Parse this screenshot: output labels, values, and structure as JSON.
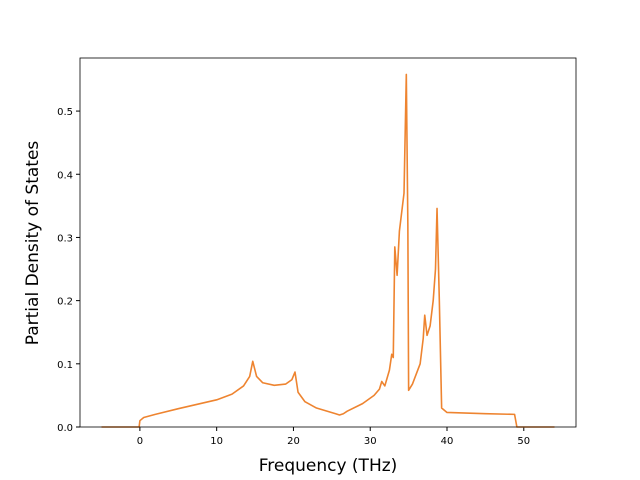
{
  "chart_data": {
    "type": "line",
    "xlabel": "Frequency (THz)",
    "ylabel": "Partial Density of States",
    "x": [
      -5,
      -0.1,
      0,
      0.5,
      2,
      5,
      10,
      12,
      13.5,
      14.3,
      14.7,
      15.2,
      16,
      17.5,
      19,
      19.8,
      20.2,
      20.6,
      21.5,
      23,
      25.5,
      26,
      26.5,
      27,
      29,
      30.5,
      31.2,
      31.5,
      31.9,
      32.5,
      32.8,
      33,
      33.2,
      33.5,
      33.8,
      34.4,
      34.7,
      34.9,
      35,
      35.5,
      36.5,
      36.9,
      37.1,
      37.4,
      37.8,
      38.2,
      38.5,
      38.7,
      39,
      39.3,
      40,
      45,
      48.8,
      49.1,
      54
    ],
    "series": [
      {
        "color": "#ee8430",
        "values": [
          0,
          0,
          0.01,
          0.015,
          0.02,
          0.029,
          0.043,
          0.052,
          0.065,
          0.08,
          0.104,
          0.08,
          0.07,
          0.066,
          0.068,
          0.075,
          0.087,
          0.055,
          0.04,
          0.03,
          0.021,
          0.019,
          0.021,
          0.025,
          0.037,
          0.05,
          0.06,
          0.072,
          0.065,
          0.09,
          0.115,
          0.11,
          0.285,
          0.24,
          0.31,
          0.37,
          0.558,
          0.32,
          0.058,
          0.068,
          0.1,
          0.14,
          0.177,
          0.145,
          0.16,
          0.2,
          0.25,
          0.346,
          0.2,
          0.03,
          0.023,
          0.021,
          0.02,
          0,
          0
        ]
      }
    ],
    "xlim": [
      -7.8,
      56.8
    ],
    "ylim": [
      0,
      0.584
    ],
    "xticks": [
      0,
      10,
      20,
      30,
      40,
      50
    ],
    "yticks": [
      {
        "value": 0,
        "label": "0.0"
      },
      0.1,
      0.2,
      0.3,
      0.4,
      0.5
    ]
  }
}
